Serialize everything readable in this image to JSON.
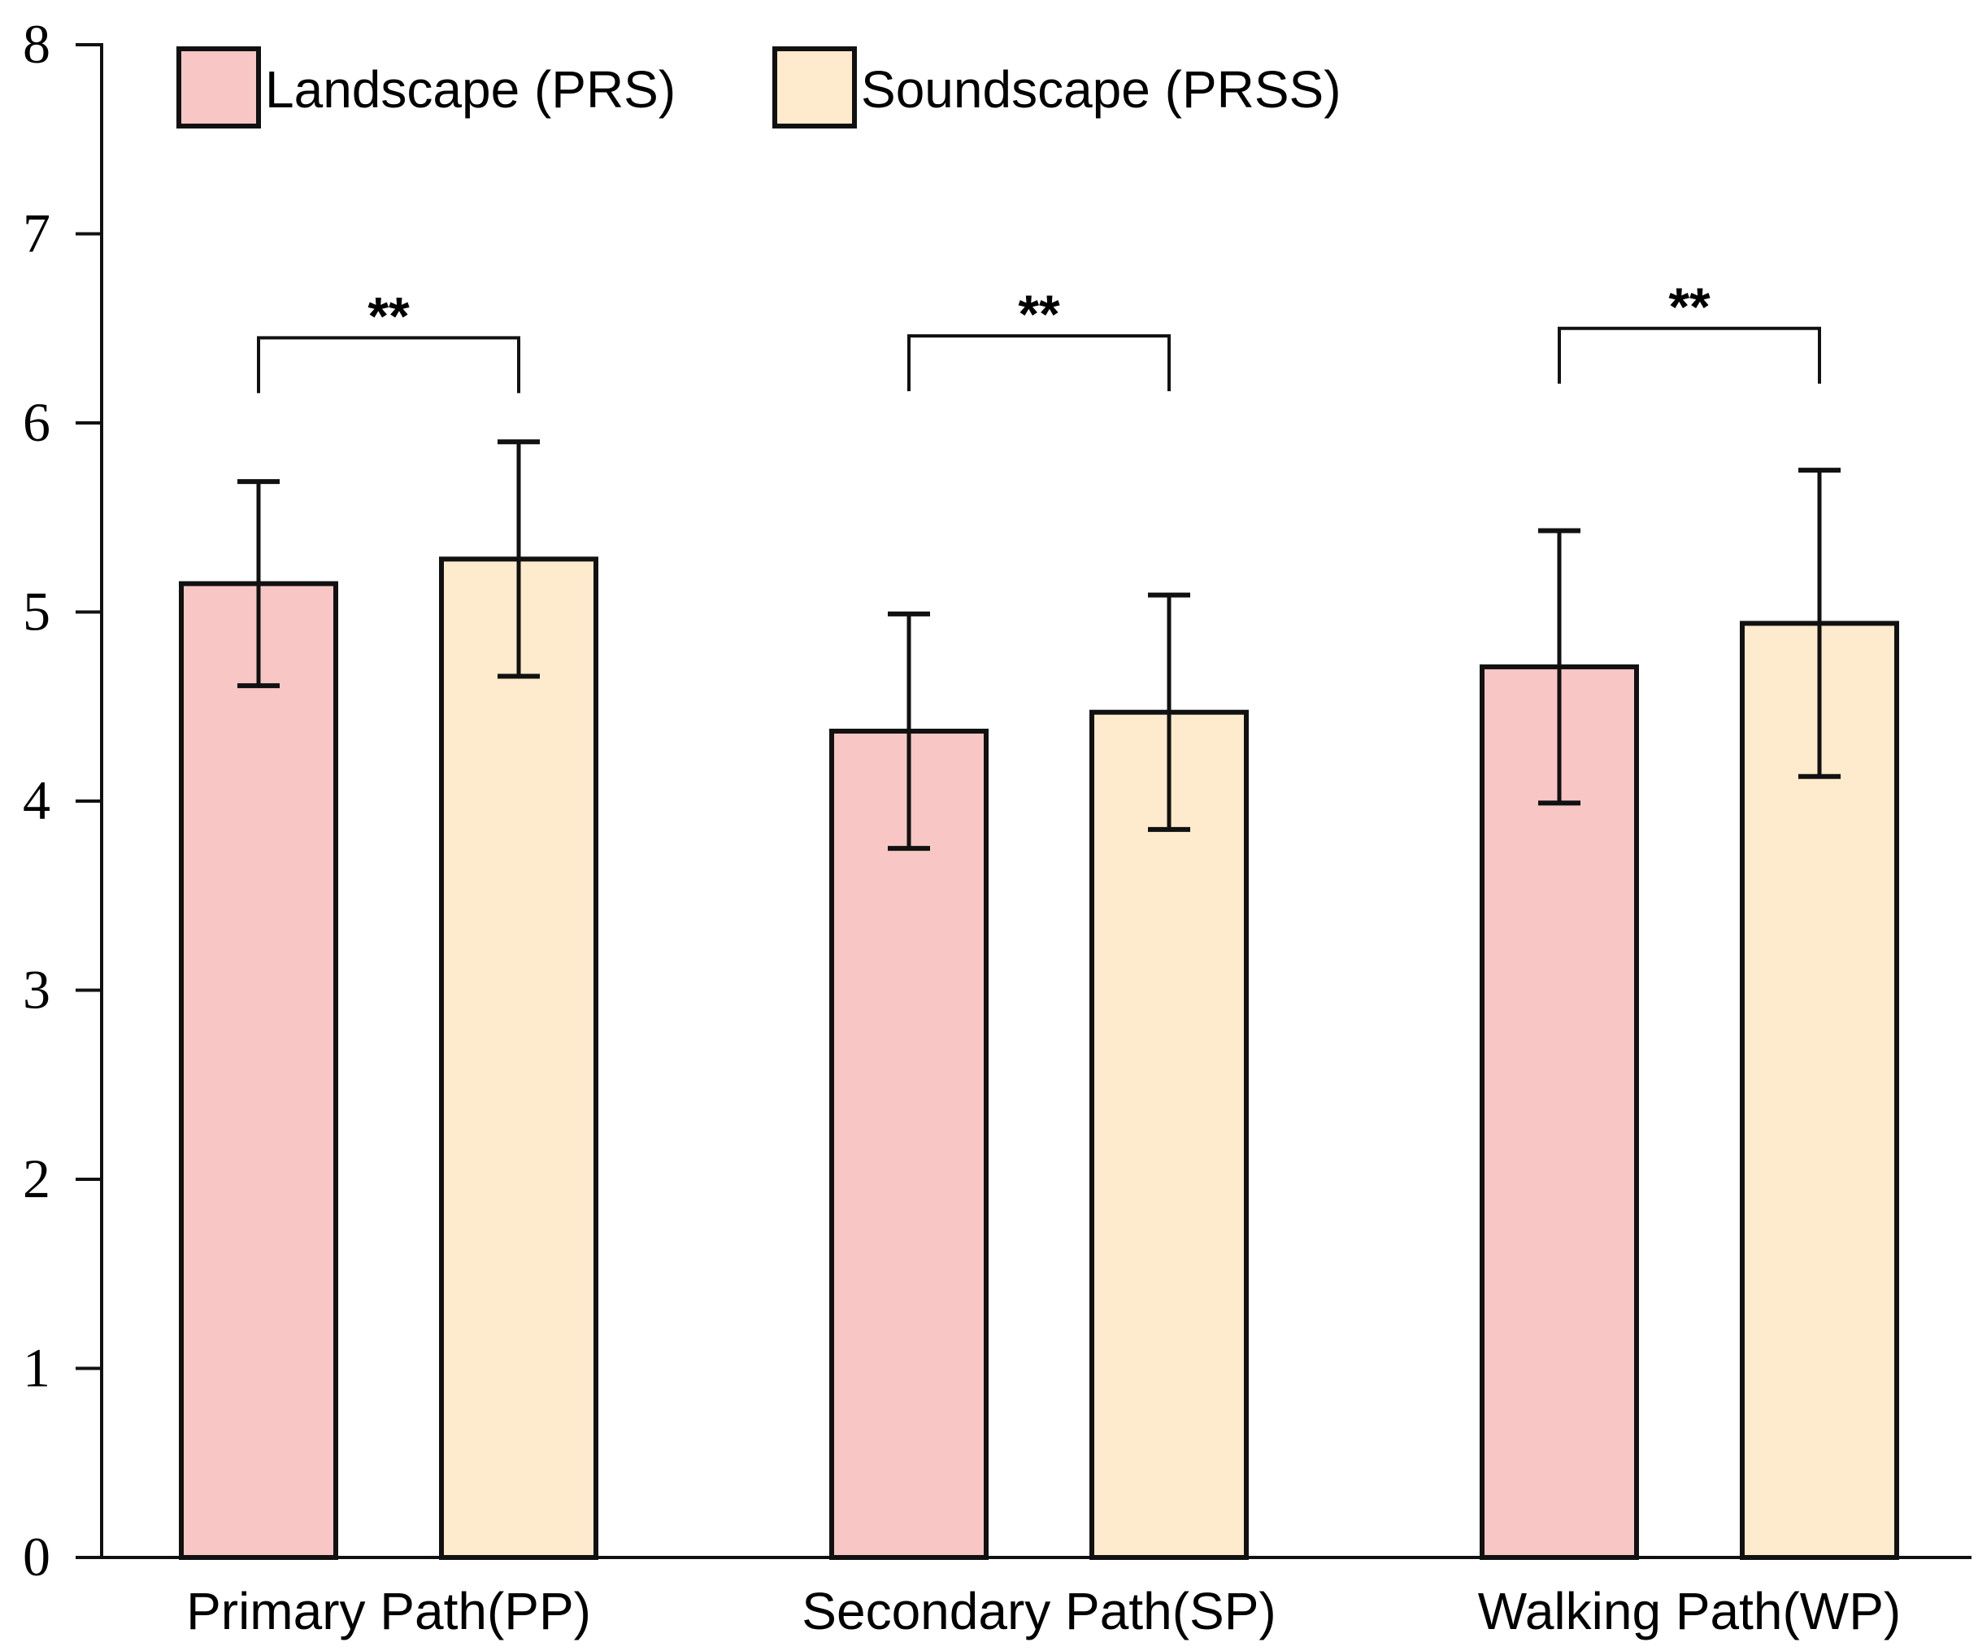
{
  "chart_data": {
    "type": "bar",
    "title": "",
    "xlabel": "",
    "ylabel": "",
    "ylim": [
      0,
      8
    ],
    "yticks": [
      "0",
      "1",
      "2",
      "3",
      "4",
      "5",
      "6",
      "7",
      "8"
    ],
    "categories": [
      "Primary Path(PP)",
      "Secondary Path(SP)",
      "Walking Path(WP)"
    ],
    "series": [
      {
        "name": "Landscape (PRS)",
        "color": "#f8c6c4",
        "values": [
          5.15,
          4.37,
          4.71
        ],
        "error": [
          0.54,
          0.62,
          0.72
        ]
      },
      {
        "name": "Soundscape (PRSS)",
        "color": "#feeacc",
        "values": [
          5.28,
          4.47,
          4.94
        ],
        "error": [
          0.62,
          0.62,
          0.81
        ]
      }
    ],
    "significance": [
      {
        "category": "Primary Path(PP)",
        "label": "**",
        "level": 6.45
      },
      {
        "category": "Secondary Path(SP)",
        "label": "**",
        "level": 6.46
      },
      {
        "category": "Walking Path(WP)",
        "label": "**",
        "level": 6.5
      }
    ],
    "legend_position": "top-left",
    "grid": false
  }
}
